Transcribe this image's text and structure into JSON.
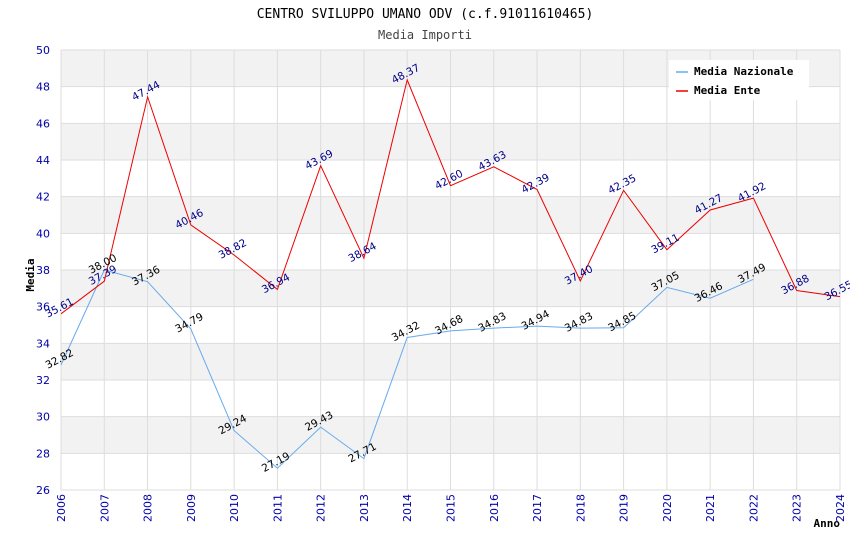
{
  "chart_data": {
    "type": "line",
    "title": "CENTRO SVILUPPO UMANO ODV (c.f.91011610465)",
    "subtitle": "Media Importi",
    "xlabel": "Anno",
    "ylabel": "Media",
    "ylim": [
      26,
      50
    ],
    "ytick_step": 2,
    "legend_position": "top-right",
    "x": [
      "2006",
      "2007",
      "2008",
      "2009",
      "2010",
      "2011",
      "2012",
      "2013",
      "2014",
      "2015",
      "2016",
      "2017",
      "2018",
      "2019",
      "2020",
      "2021",
      "2022",
      "2023",
      "2024"
    ],
    "colors": {
      "tick_label": "#0000aa",
      "band": "#f2f2f2",
      "grid": "#dddddd"
    },
    "series": [
      {
        "name": "Media Nazionale",
        "color": "#66aaee",
        "label_color": "#000000",
        "values": [
          32.82,
          38.0,
          37.36,
          34.79,
          29.24,
          27.19,
          29.43,
          27.71,
          34.32,
          34.68,
          34.83,
          34.94,
          34.83,
          34.85,
          37.05,
          36.46,
          37.49,
          null,
          null
        ],
        "labels": [
          "32.82",
          "38.00",
          "37.36",
          "34.79",
          "29.24",
          "27.19",
          "29.43",
          "27.71",
          "34.32",
          "34.68",
          "34.83",
          "34.94",
          "34.83",
          "34.85",
          "37.05",
          "36.46",
          "37.49",
          null,
          null
        ]
      },
      {
        "name": "Media Ente",
        "color": "#ee0000",
        "label_color": "#000088",
        "values": [
          35.61,
          37.39,
          47.44,
          40.46,
          38.82,
          36.94,
          43.69,
          38.64,
          48.37,
          42.6,
          43.63,
          42.39,
          37.4,
          42.35,
          39.11,
          41.27,
          41.92,
          36.88,
          36.55
        ],
        "labels": [
          "35.61",
          "37.39",
          "47.44",
          "40.46",
          "38.82",
          "36.94",
          "43.69",
          "38.64",
          "48.37",
          "42.60",
          "43.63",
          "42.39",
          "37.40",
          "42.35",
          "39.11",
          "41.27",
          "41.92",
          "36.88",
          "36.55"
        ]
      }
    ]
  }
}
